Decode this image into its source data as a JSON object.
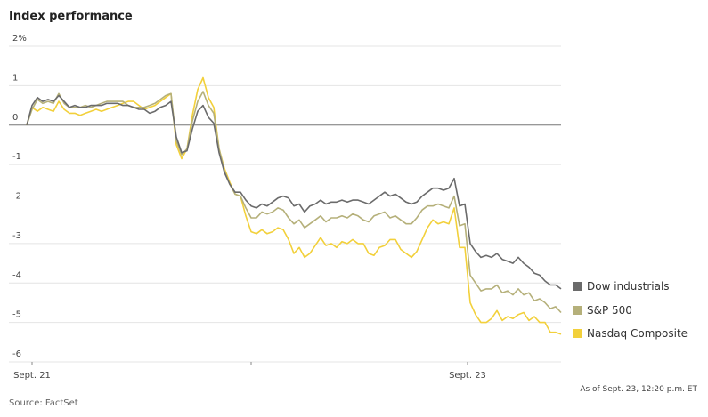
{
  "chart_data": {
    "type": "line",
    "title": "Index performance",
    "ylim": [
      -6,
      2
    ],
    "yticks": [
      {
        "value": 2,
        "label": "2%"
      },
      1,
      0,
      -1,
      -2,
      -3,
      -4,
      -5,
      -6
    ],
    "grid": true,
    "xlim": [
      0,
      100
    ],
    "xticks": [
      {
        "value": 1,
        "label": "Sept. 21"
      },
      {
        "value": 82.5,
        "label": "Sept. 23"
      }
    ],
    "minor_xticks": [
      42
    ],
    "series": [
      {
        "name": "Dow industrials",
        "color": "#6b6b6b",
        "values": [
          0,
          0.5,
          0.7,
          0.6,
          0.65,
          0.6,
          0.75,
          0.6,
          0.45,
          0.5,
          0.45,
          0.45,
          0.5,
          0.5,
          0.5,
          0.55,
          0.55,
          0.55,
          0.5,
          0.5,
          0.45,
          0.4,
          0.4,
          0.3,
          0.35,
          0.45,
          0.5,
          0.6,
          -0.3,
          -0.7,
          -0.65,
          -0.1,
          0.35,
          0.5,
          0.2,
          0.05,
          -0.7,
          -1.2,
          -1.5,
          -1.7,
          -1.7,
          -1.9,
          -2.05,
          -2.1,
          -2.0,
          -2.05,
          -1.95,
          -1.85,
          -1.8,
          -1.85,
          -2.05,
          -2.0,
          -2.2,
          -2.05,
          -2.0,
          -1.9,
          -2.0,
          -1.95,
          -1.95,
          -1.9,
          -1.95,
          -1.9,
          -1.9,
          -1.95,
          -2.0,
          -1.9,
          -1.8,
          -1.7,
          -1.8,
          -1.75,
          -1.85,
          -1.95,
          -2.0,
          -1.95,
          -1.8,
          -1.7,
          -1.6,
          -1.6,
          -1.65,
          -1.6,
          -1.35,
          -2.05,
          -2.0,
          -3.0,
          -3.2,
          -3.35,
          -3.3,
          -3.35,
          -3.25,
          -3.4,
          -3.45,
          -3.5,
          -3.35,
          -3.5,
          -3.6,
          -3.75,
          -3.8,
          -3.95,
          -4.05,
          -4.05,
          -4.15
        ]
      },
      {
        "name": "S&P 500",
        "color": "#b5b07a",
        "values": [
          0,
          0.4,
          0.65,
          0.55,
          0.6,
          0.55,
          0.8,
          0.55,
          0.45,
          0.45,
          0.45,
          0.5,
          0.45,
          0.5,
          0.55,
          0.6,
          0.6,
          0.6,
          0.6,
          0.5,
          0.45,
          0.45,
          0.45,
          0.5,
          0.55,
          0.65,
          0.75,
          0.8,
          -0.4,
          -0.75,
          -0.6,
          0.1,
          0.6,
          0.85,
          0.5,
          0.3,
          -0.6,
          -1.15,
          -1.5,
          -1.75,
          -1.8,
          -2.1,
          -2.35,
          -2.35,
          -2.2,
          -2.25,
          -2.2,
          -2.1,
          -2.15,
          -2.35,
          -2.5,
          -2.4,
          -2.6,
          -2.5,
          -2.4,
          -2.3,
          -2.45,
          -2.35,
          -2.35,
          -2.3,
          -2.35,
          -2.25,
          -2.3,
          -2.4,
          -2.45,
          -2.3,
          -2.25,
          -2.2,
          -2.35,
          -2.3,
          -2.4,
          -2.5,
          -2.5,
          -2.35,
          -2.15,
          -2.05,
          -2.05,
          -2.0,
          -2.05,
          -2.1,
          -1.8,
          -2.55,
          -2.5,
          -3.8,
          -4.0,
          -4.2,
          -4.15,
          -4.15,
          -4.05,
          -4.25,
          -4.2,
          -4.3,
          -4.15,
          -4.3,
          -4.25,
          -4.45,
          -4.4,
          -4.5,
          -4.65,
          -4.6,
          -4.75
        ]
      },
      {
        "name": "Nasdaq Composite",
        "color": "#f2d03b",
        "values": [
          0,
          0.45,
          0.35,
          0.45,
          0.4,
          0.35,
          0.6,
          0.4,
          0.3,
          0.3,
          0.25,
          0.3,
          0.35,
          0.4,
          0.35,
          0.4,
          0.45,
          0.5,
          0.55,
          0.6,
          0.6,
          0.5,
          0.4,
          0.45,
          0.5,
          0.6,
          0.7,
          0.8,
          -0.5,
          -0.85,
          -0.6,
          0.25,
          0.9,
          1.2,
          0.7,
          0.45,
          -0.6,
          -1.1,
          -1.45,
          -1.75,
          -1.8,
          -2.3,
          -2.7,
          -2.75,
          -2.65,
          -2.75,
          -2.7,
          -2.6,
          -2.65,
          -2.9,
          -3.25,
          -3.1,
          -3.35,
          -3.25,
          -3.05,
          -2.85,
          -3.05,
          -3.0,
          -3.1,
          -2.95,
          -3.0,
          -2.9,
          -3.0,
          -3.0,
          -3.25,
          -3.3,
          -3.1,
          -3.05,
          -2.9,
          -2.9,
          -3.15,
          -3.25,
          -3.35,
          -3.2,
          -2.9,
          -2.6,
          -2.4,
          -2.5,
          -2.45,
          -2.5,
          -2.1,
          -3.1,
          -3.1,
          -4.5,
          -4.8,
          -5.0,
          -5.0,
          -4.9,
          -4.7,
          -4.95,
          -4.85,
          -4.9,
          -4.8,
          -4.75,
          -4.95,
          -4.85,
          -5.0,
          -5.0,
          -5.25,
          -5.25,
          -5.3
        ]
      }
    ],
    "note": "As of Sept. 23, 12:20 p.m. ET",
    "source": "Source: FactSet"
  }
}
